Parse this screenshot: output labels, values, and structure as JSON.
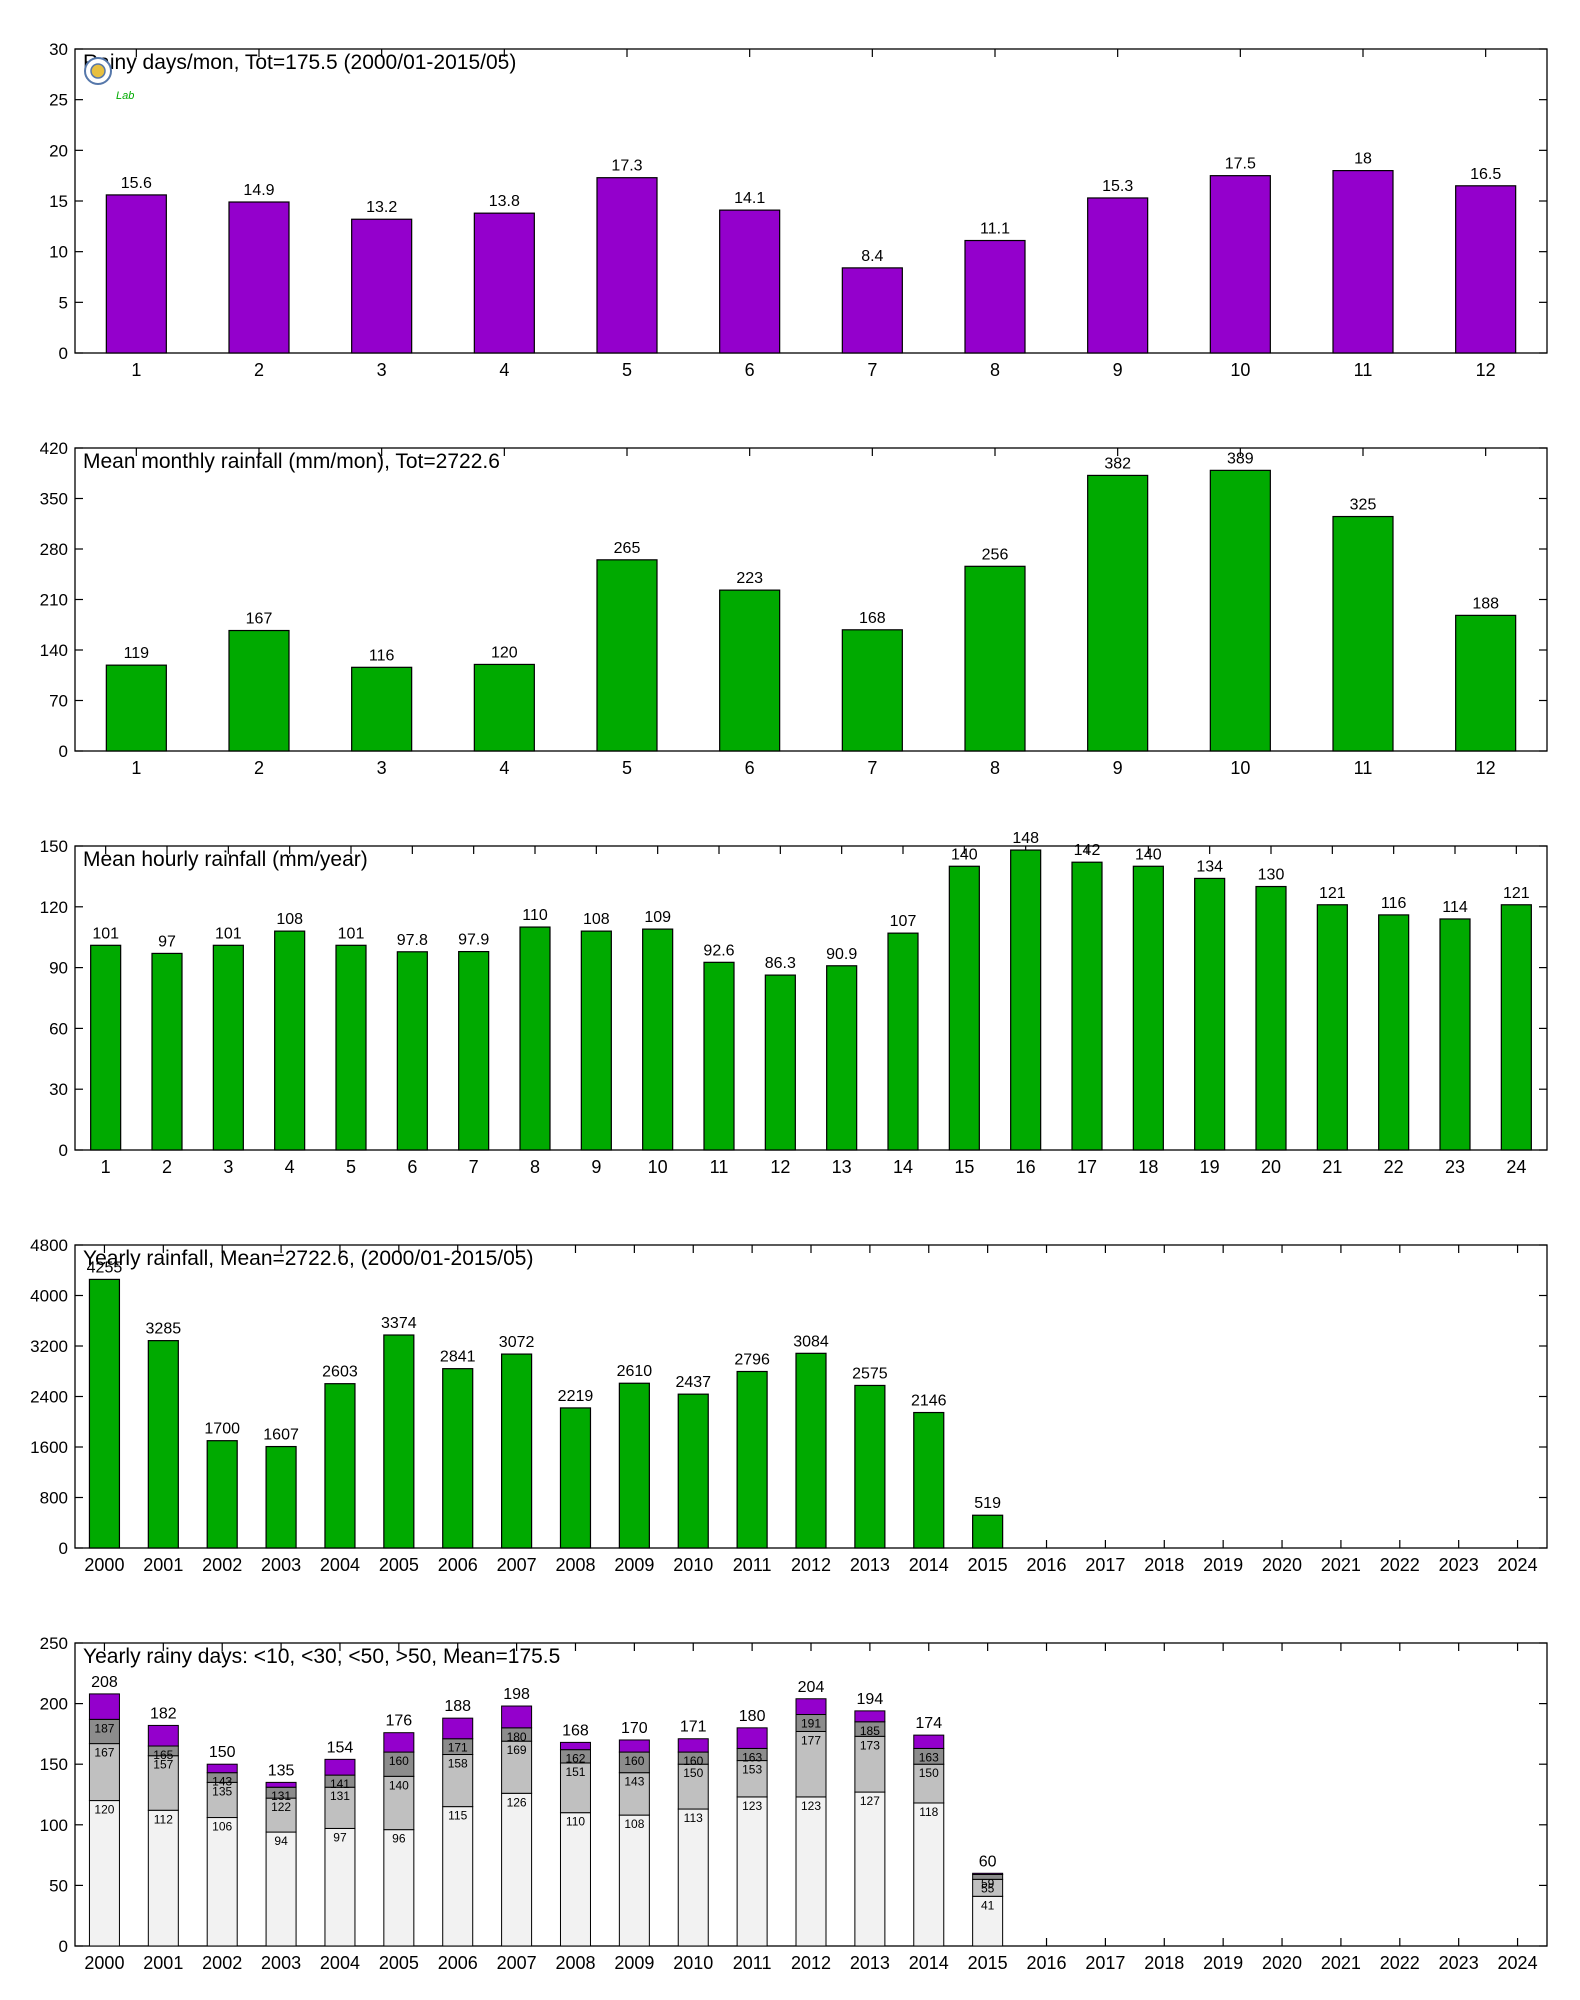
{
  "logo": {
    "text": "Lab"
  },
  "chart_data": [
    {
      "id": "rainy-days-month",
      "type": "bar",
      "title": "Rainy days/mon, Tot=175.5 (2000/01-2015/05)",
      "categories": [
        "1",
        "2",
        "3",
        "4",
        "5",
        "6",
        "7",
        "8",
        "9",
        "10",
        "11",
        "12"
      ],
      "values": [
        15.6,
        14.9,
        13.2,
        13.8,
        17.3,
        14.1,
        8.4,
        11.1,
        15.3,
        17.5,
        18,
        16.5
      ],
      "value_labels": [
        "15.6",
        "14.9",
        "13.2",
        "13.8",
        "17.3",
        "14.1",
        "8.4",
        "11.1",
        "15.3",
        "17.5",
        "18",
        "16.5"
      ],
      "ylim": [
        0,
        30
      ],
      "yticks": [
        0,
        5,
        10,
        15,
        20,
        25,
        30
      ],
      "color": "#9400cc",
      "grid": false,
      "legend": "none"
    },
    {
      "id": "mean-monthly-rainfall",
      "type": "bar",
      "title": "Mean monthly rainfall (mm/mon), Tot=2722.6",
      "categories": [
        "1",
        "2",
        "3",
        "4",
        "5",
        "6",
        "7",
        "8",
        "9",
        "10",
        "11",
        "12"
      ],
      "values": [
        119,
        167,
        116,
        120,
        265,
        223,
        168,
        256,
        382,
        389,
        325,
        188
      ],
      "value_labels": [
        "119",
        "167",
        "116",
        "120",
        "265",
        "223",
        "168",
        "256",
        "382",
        "389",
        "325",
        "188"
      ],
      "ylim": [
        0,
        420
      ],
      "yticks": [
        0,
        70,
        140,
        210,
        280,
        350,
        420
      ],
      "color": "#00aa00",
      "grid": false,
      "legend": "none"
    },
    {
      "id": "mean-hourly-rainfall",
      "type": "bar",
      "title": "Mean hourly rainfall (mm/year)",
      "categories": [
        "1",
        "2",
        "3",
        "4",
        "5",
        "6",
        "7",
        "8",
        "9",
        "10",
        "11",
        "12",
        "13",
        "14",
        "15",
        "16",
        "17",
        "18",
        "19",
        "20",
        "21",
        "22",
        "23",
        "24"
      ],
      "values": [
        101,
        97,
        101,
        108,
        101,
        97.8,
        97.9,
        110,
        108,
        109,
        92.6,
        86.3,
        90.9,
        107,
        140,
        148,
        142,
        140,
        134,
        130,
        121,
        116,
        114,
        121
      ],
      "value_labels": [
        "101",
        "97",
        "101",
        "108",
        "101",
        "97.8",
        "97.9",
        "110",
        "108",
        "109",
        "92.6",
        "86.3",
        "90.9",
        "107",
        "140",
        "148",
        "142",
        "140",
        "134",
        "130",
        "121",
        "116",
        "114",
        "121"
      ],
      "ylim": [
        0,
        150
      ],
      "yticks": [
        0,
        30,
        60,
        90,
        120,
        150
      ],
      "color": "#00aa00",
      "grid": false,
      "legend": "none"
    },
    {
      "id": "yearly-rainfall",
      "type": "bar",
      "title": "Yearly rainfall, Mean=2722.6, (2000/01-2015/05)",
      "categories": [
        "2000",
        "2001",
        "2002",
        "2003",
        "2004",
        "2005",
        "2006",
        "2007",
        "2008",
        "2009",
        "2010",
        "2011",
        "2012",
        "2013",
        "2014",
        "2015",
        "2016",
        "2017",
        "2018",
        "2019",
        "2020",
        "2021",
        "2022",
        "2023",
        "2024"
      ],
      "values": [
        4255,
        3285,
        1700,
        1607,
        2603,
        3374,
        2841,
        3072,
        2219,
        2610,
        2437,
        2796,
        3084,
        2575,
        2146,
        519,
        null,
        null,
        null,
        null,
        null,
        null,
        null,
        null,
        null
      ],
      "value_labels": [
        "4255",
        "3285",
        "1700",
        "1607",
        "2603",
        "3374",
        "2841",
        "3072",
        "2219",
        "2610",
        "2437",
        "2796",
        "3084",
        "2575",
        "2146",
        "519",
        "",
        "",
        "",
        "",
        "",
        "",
        "",
        "",
        ""
      ],
      "ylim": [
        0,
        4800
      ],
      "yticks": [
        0,
        800,
        1600,
        2400,
        3200,
        4000,
        4800
      ],
      "color": "#00aa00",
      "grid": false,
      "legend": "none"
    },
    {
      "id": "yearly-rainy-days",
      "type": "bar",
      "stacked": true,
      "title": "Yearly rainy days: <10, <30, <50, >50, Mean=175.5",
      "categories": [
        "2000",
        "2001",
        "2002",
        "2003",
        "2004",
        "2005",
        "2006",
        "2007",
        "2008",
        "2009",
        "2010",
        "2011",
        "2012",
        "2013",
        "2014",
        "2015",
        "2016",
        "2017",
        "2018",
        "2019",
        "2020",
        "2021",
        "2022",
        "2023",
        "2024"
      ],
      "cumulative": {
        "lt10": [
          120,
          112,
          106,
          94,
          97,
          96,
          115,
          126,
          110,
          108,
          113,
          123,
          123,
          127,
          118,
          41,
          null,
          null,
          null,
          null,
          null,
          null,
          null,
          null,
          null
        ],
        "lt30": [
          167,
          157,
          135,
          122,
          131,
          140,
          158,
          169,
          151,
          143,
          150,
          153,
          177,
          173,
          150,
          55,
          null,
          null,
          null,
          null,
          null,
          null,
          null,
          null,
          null
        ],
        "lt50": [
          187,
          165,
          143,
          131,
          141,
          160,
          171,
          180,
          162,
          160,
          160,
          163,
          191,
          185,
          163,
          59,
          null,
          null,
          null,
          null,
          null,
          null,
          null,
          null,
          null
        ],
        "total": [
          208,
          182,
          150,
          135,
          154,
          176,
          188,
          198,
          168,
          170,
          171,
          180,
          204,
          194,
          174,
          60,
          null,
          null,
          null,
          null,
          null,
          null,
          null,
          null,
          null
        ]
      },
      "labels": {
        "lt10": [
          "120",
          "112",
          "106",
          "94",
          "97",
          "96",
          "115",
          "126",
          "110",
          "108",
          "113",
          "123",
          "123",
          "127",
          "118",
          "41",
          "",
          "",
          "",
          "",
          "",
          "",
          "",
          "",
          ""
        ],
        "lt30": [
          "167",
          "157",
          "135",
          "122",
          "131",
          "140",
          "158",
          "169",
          "151",
          "143",
          "150",
          "153",
          "177",
          "173",
          "150",
          "55",
          "",
          "",
          "",
          "",
          "",
          "",
          "",
          "",
          ""
        ],
        "lt50": [
          "187",
          "165",
          "143",
          "131",
          "141",
          "160",
          "171",
          "180",
          "162",
          "160",
          "160",
          "163",
          "191",
          "185",
          "163",
          "59",
          "",
          "",
          "",
          "",
          "",
          "",
          "",
          "",
          ""
        ],
        "total": [
          "208",
          "182",
          "150",
          "135",
          "154",
          "176",
          "188",
          "198",
          "168",
          "170",
          "171",
          "180",
          "204",
          "194",
          "174",
          "60",
          "",
          "",
          "",
          "",
          "",
          "",
          "",
          "",
          ""
        ]
      },
      "colors": {
        "lt10": "#f2f2f2",
        "lt30": "#c0c0c0",
        "lt50": "#8c8c8c",
        "gt50": "#9400cc"
      },
      "ylim": [
        0,
        250
      ],
      "yticks": [
        0,
        50,
        100,
        150,
        200,
        250
      ],
      "grid": false,
      "legend": "none"
    }
  ]
}
